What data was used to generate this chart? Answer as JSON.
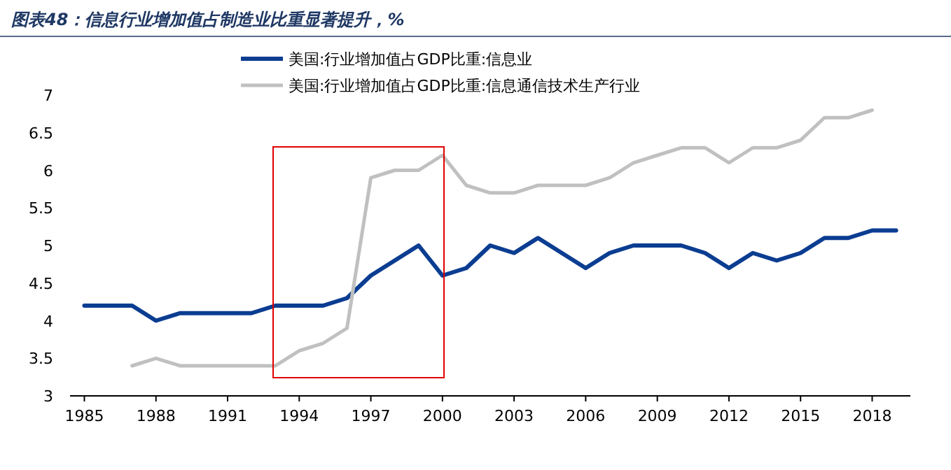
{
  "chart_data": {
    "type": "line",
    "title": "图表48：信息行业增加值占制造业比重显著提升，%",
    "x": [
      1985,
      1986,
      1987,
      1988,
      1989,
      1990,
      1991,
      1992,
      1993,
      1994,
      1995,
      1996,
      1997,
      1998,
      1999,
      2000,
      2001,
      2002,
      2003,
      2004,
      2005,
      2006,
      2007,
      2008,
      2009,
      2010,
      2011,
      2012,
      2013,
      2014,
      2015,
      2016,
      2017,
      2018,
      2019
    ],
    "series": [
      {
        "name": "美国:行业增加值占GDP比重:信息业",
        "color": "#0b3d91",
        "values": [
          4.2,
          4.2,
          4.2,
          4.0,
          4.1,
          4.1,
          4.1,
          4.1,
          4.2,
          4.2,
          4.2,
          4.3,
          4.6,
          4.8,
          5.0,
          4.6,
          4.7,
          5.0,
          4.9,
          5.1,
          4.9,
          4.7,
          4.9,
          5.0,
          5.0,
          5.0,
          4.9,
          4.7,
          4.9,
          4.8,
          4.9,
          5.1,
          5.1,
          5.2,
          5.2
        ]
      },
      {
        "name": "美国:行业增加值占GDP比重:信息通信技术生产行业",
        "color": "#c0c0c0",
        "values": [
          null,
          null,
          3.4,
          3.5,
          3.4,
          3.4,
          3.4,
          3.4,
          3.4,
          3.6,
          3.7,
          3.9,
          5.9,
          6.0,
          6.0,
          6.2,
          5.8,
          5.7,
          5.7,
          5.8,
          5.8,
          5.8,
          5.9,
          6.1,
          6.2,
          6.3,
          6.3,
          6.1,
          6.3,
          6.3,
          6.4,
          6.7,
          6.7,
          6.8,
          null
        ]
      }
    ],
    "xlim": [
      1984.4,
      2019.6
    ],
    "xticks": [
      1985,
      1988,
      1991,
      1994,
      1997,
      2000,
      2003,
      2006,
      2009,
      2012,
      2015,
      2018
    ],
    "ylim": [
      3,
      7
    ],
    "yticks": [
      3,
      3.5,
      4,
      4.5,
      5,
      5.5,
      6,
      6.5,
      7
    ],
    "legend": "top",
    "marker": "none",
    "line_style": "solid"
  }
}
